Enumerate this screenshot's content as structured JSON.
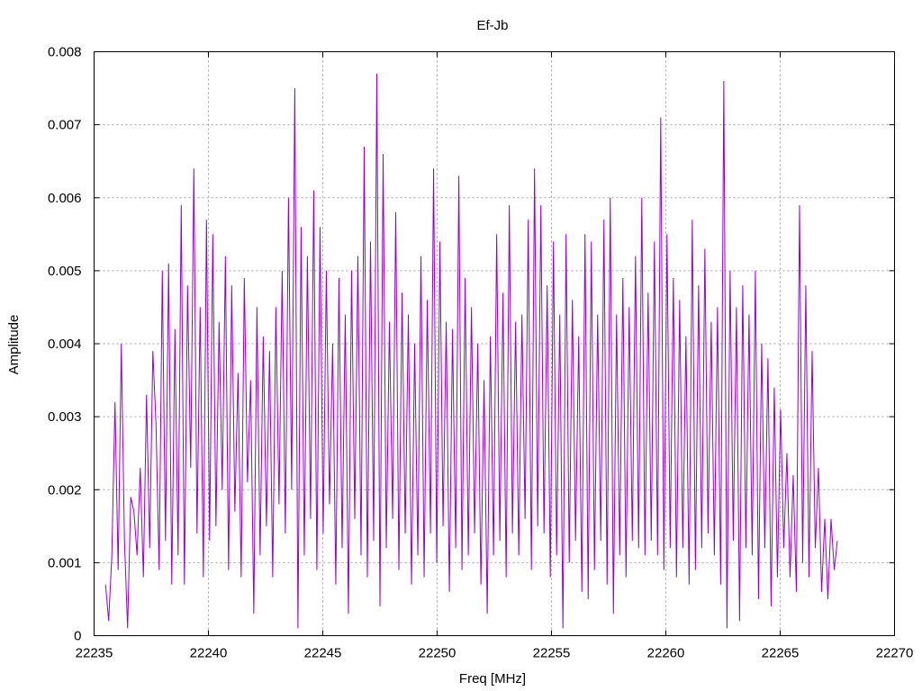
{
  "chart_data": {
    "type": "line",
    "title": "Ef-Jb",
    "xlabel": "Freq [MHz]",
    "ylabel": "Amplitude",
    "xlim": [
      22235,
      22270
    ],
    "ylim": [
      0,
      0.008
    ],
    "xticks": [
      22235,
      22240,
      22245,
      22250,
      22255,
      22260,
      22265,
      22270
    ],
    "xtick_labels": [
      "22235",
      "22240",
      "22245",
      "22250",
      "22255",
      "22260",
      "22265",
      "22270"
    ],
    "yticks": [
      0,
      0.001,
      0.002,
      0.003,
      0.004,
      0.005,
      0.006,
      0.007,
      0.008
    ],
    "ytick_labels": [
      "0",
      "0.001",
      "0.002",
      "0.003",
      "0.004",
      "0.005",
      "0.006",
      "0.007",
      "0.008"
    ],
    "grid": true,
    "series": [
      {
        "color": "#9400d3",
        "x_start": 22235.5,
        "x_end": 22267.5,
        "sampled_values": [
          0.0007,
          0.0002,
          0.0011,
          0.0032,
          0.0009,
          0.004,
          0.0013,
          0.0001,
          0.0019,
          0.0017,
          0.0011,
          0.0023,
          0.0008,
          0.0033,
          0.0012,
          0.0039,
          0.0029,
          0.0009,
          0.005,
          0.0013,
          0.0051,
          0.0007,
          0.0042,
          0.0011,
          0.0059,
          0.0007,
          0.0048,
          0.0023,
          0.0064,
          0.0014,
          0.0045,
          0.0008,
          0.0057,
          0.0013,
          0.0055,
          0.0015,
          0.0043,
          0.002,
          0.0052,
          0.0009,
          0.0048,
          0.0017,
          0.0036,
          0.0008,
          0.0049,
          0.0021,
          0.0035,
          0.0003,
          0.0045,
          0.0011,
          0.0041,
          0.0015,
          0.0039,
          0.0008,
          0.0045,
          0.0018,
          0.005,
          0.0014,
          0.006,
          0.002,
          0.0075,
          0.0001,
          0.0056,
          0.0011,
          0.0052,
          0.0016,
          0.0061,
          0.0009,
          0.0056,
          0.0014,
          0.005,
          0.0018,
          0.004,
          0.0007,
          0.0049,
          0.0012,
          0.0044,
          0.0003,
          0.005,
          0.0016,
          0.0052,
          0.0011,
          0.0067,
          0.0008,
          0.0054,
          0.0013,
          0.0077,
          0.0004,
          0.0066,
          0.0012,
          0.0043,
          0.0016,
          0.0058,
          0.0009,
          0.0047,
          0.0014,
          0.0044,
          0.0007,
          0.004,
          0.0011,
          0.0052,
          0.0008,
          0.0046,
          0.0014,
          0.0064,
          0.001,
          0.0054,
          0.0015,
          0.0043,
          0.0006,
          0.0042,
          0.0012,
          0.0063,
          0.0009,
          0.0049,
          0.0011,
          0.0045,
          0.0014,
          0.004,
          0.0007,
          0.0035,
          0.0003,
          0.0041,
          0.0011,
          0.0055,
          0.0013,
          0.0047,
          0.0008,
          0.0059,
          0.0014,
          0.0043,
          0.0011,
          0.0044,
          0.0016,
          0.0057,
          0.0009,
          0.0064,
          0.0015,
          0.0059,
          0.0014,
          0.0048,
          0.0008,
          0.0054,
          0.0011,
          0.0044,
          0.0001,
          0.0055,
          0.001,
          0.0046,
          0.0013,
          0.0041,
          0.0006,
          0.0055,
          0.0005,
          0.0054,
          0.0009,
          0.0044,
          0.0013,
          0.0057,
          0.0007,
          0.006,
          0.0003,
          0.0044,
          0.0011,
          0.0049,
          0.0008,
          0.0045,
          0.0013,
          0.0052,
          0.0012,
          0.006,
          0.0011,
          0.0047,
          0.0013,
          0.0054,
          0.0011,
          0.0071,
          0.0009,
          0.0055,
          0.0012,
          0.0049,
          0.0008,
          0.0046,
          0.0012,
          0.0041,
          0.0007,
          0.0057,
          0.0009,
          0.0048,
          0.0012,
          0.0053,
          0.0014,
          0.0043,
          0.0011,
          0.0045,
          0.0007,
          0.0076,
          0.0001,
          0.005,
          0.0013,
          0.0045,
          0.0002,
          0.0048,
          0.0012,
          0.0044,
          0.0011,
          0.005,
          0.0005,
          0.004,
          0.0012,
          0.0038,
          0.0004,
          0.0034,
          0.0008,
          0.0031,
          0.0012,
          0.0025,
          0.0008,
          0.0022,
          0.0006,
          0.0059,
          0.001,
          0.0048,
          0.0008,
          0.0039,
          0.0012,
          0.0023,
          0.0006,
          0.0016,
          0.0005,
          0.0016,
          0.0009,
          0.0013
        ]
      }
    ]
  }
}
